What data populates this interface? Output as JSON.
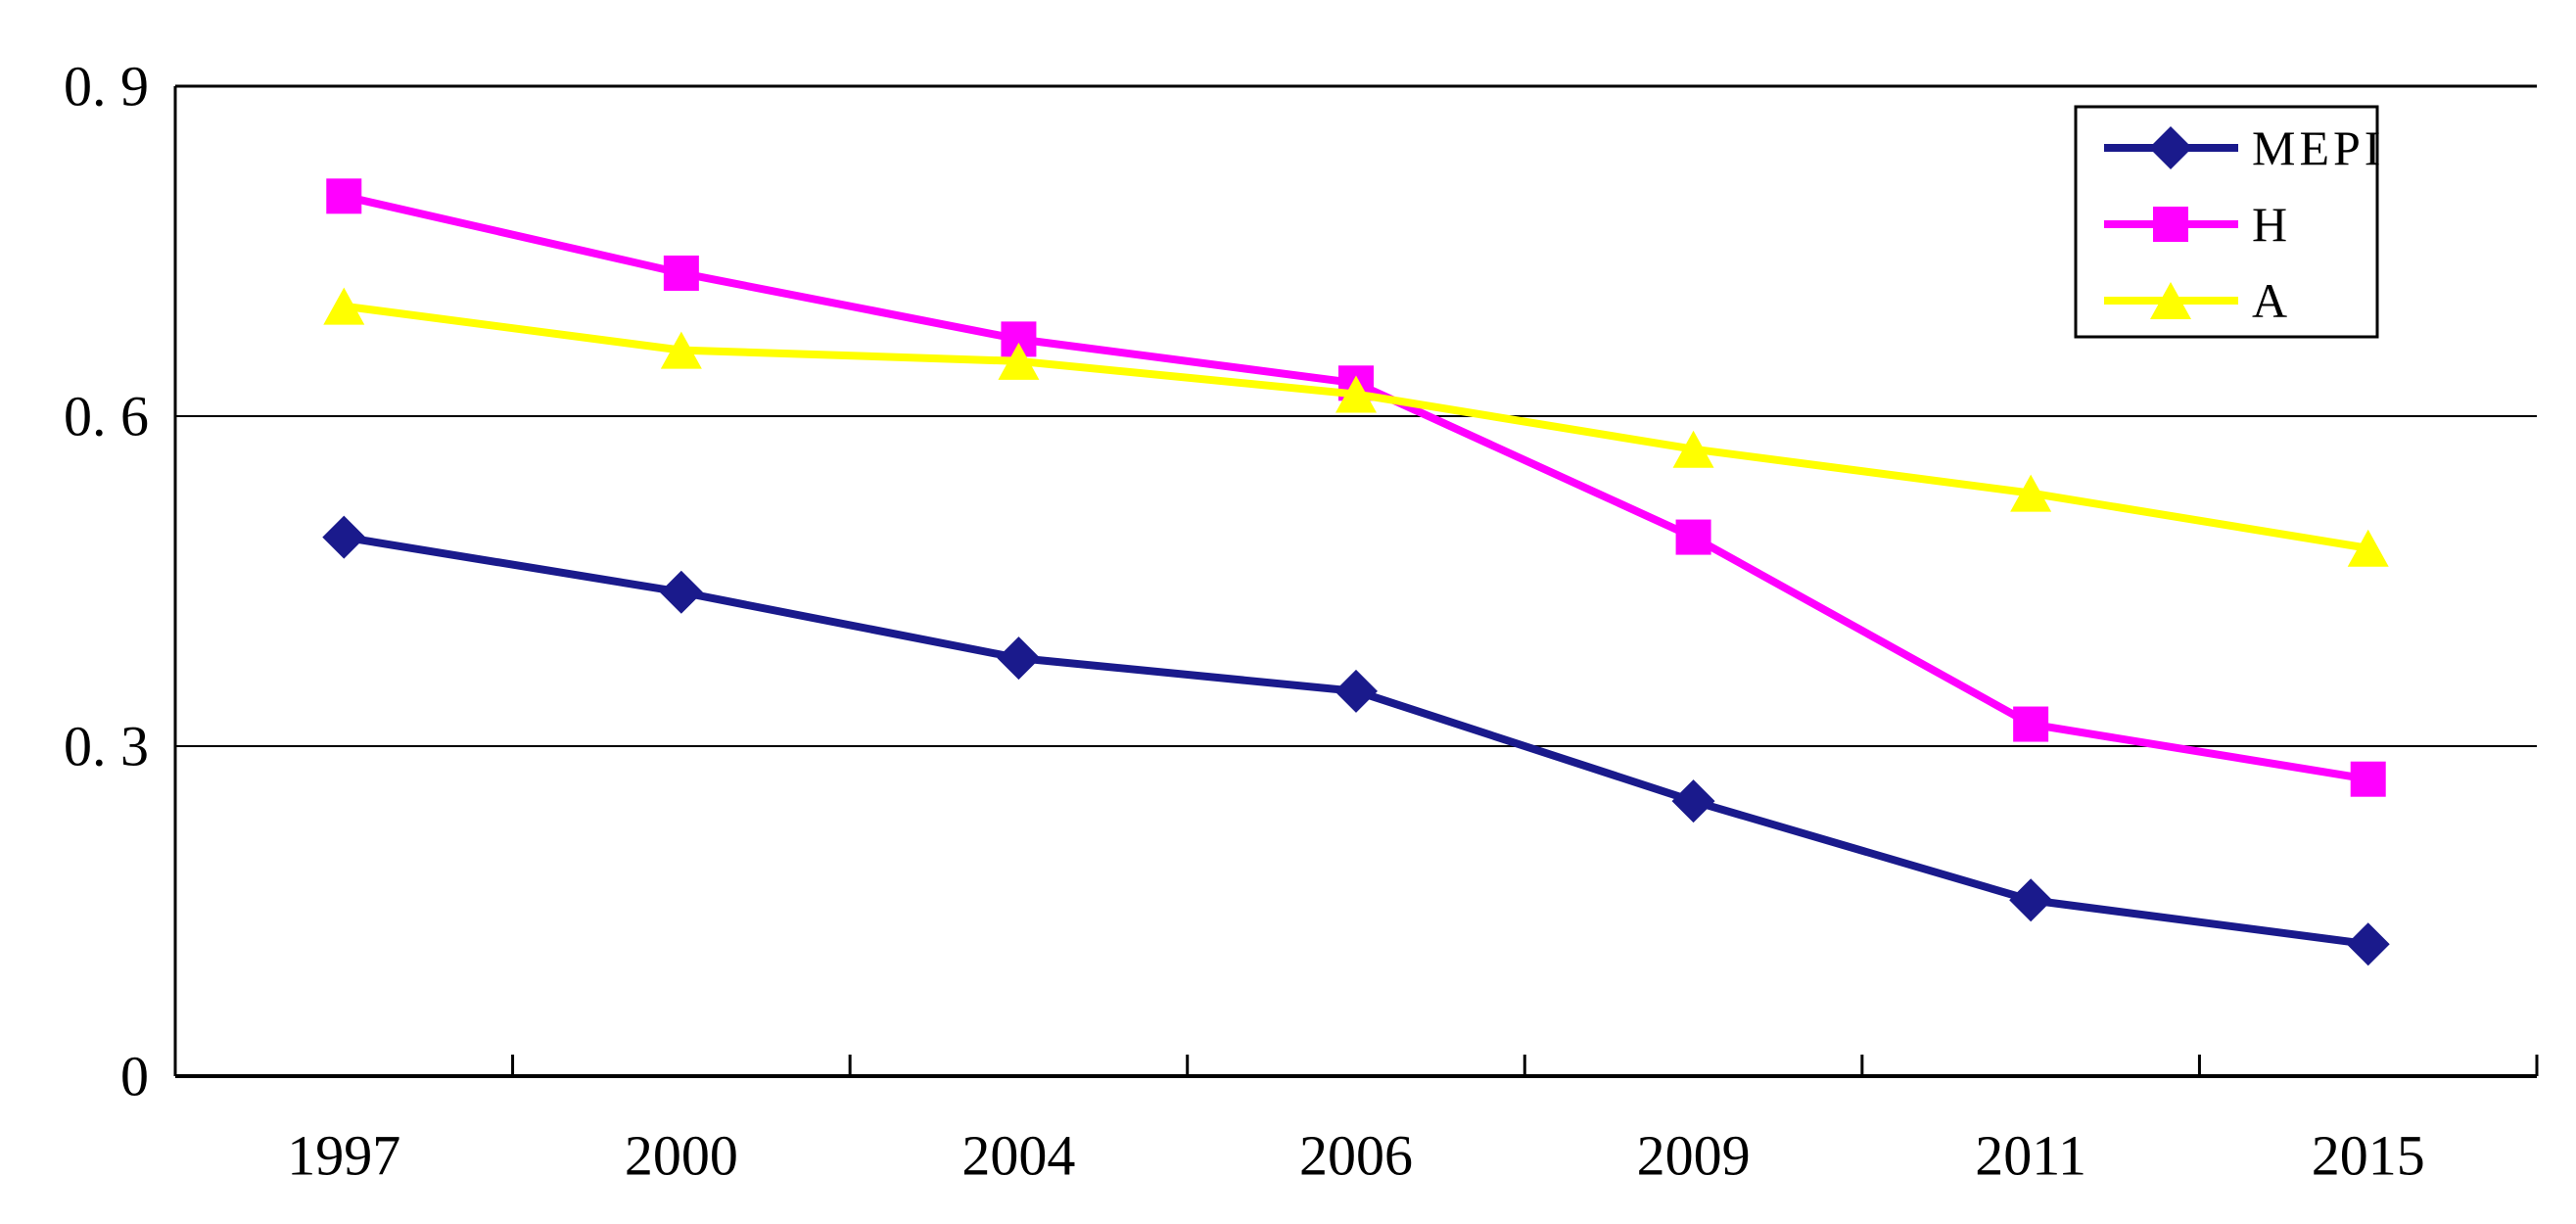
{
  "chart": {
    "background": "#ffffff",
    "axis_color": "#000000",
    "plot_border_color": "#000000",
    "gridline_color": "#000000"
  },
  "chart_data": {
    "type": "line",
    "title": "",
    "xlabel": "",
    "ylabel": "",
    "categories": [
      "1997",
      "2000",
      "2004",
      "2006",
      "2009",
      "2011",
      "2015"
    ],
    "series": [
      {
        "name": "MEPI",
        "color": "#1a1a8c",
        "marker": "diamond",
        "values": [
          0.49,
          0.44,
          0.38,
          0.35,
          0.25,
          0.16,
          0.12
        ]
      },
      {
        "name": "H",
        "color": "#ff00ff",
        "marker": "square",
        "values": [
          0.8,
          0.73,
          0.67,
          0.63,
          0.49,
          0.32,
          0.27
        ]
      },
      {
        "name": "A",
        "color": "#ffff00",
        "marker": "triangle",
        "values": [
          0.7,
          0.66,
          0.65,
          0.62,
          0.57,
          0.53,
          0.48
        ]
      }
    ],
    "ylim": [
      0,
      0.9
    ],
    "y_ticks": [
      0,
      0.3,
      0.6,
      0.9
    ],
    "y_tick_labels": [
      "0",
      "0. 3",
      "0. 6",
      "0. 9"
    ],
    "inner_gridlines": [
      0.3,
      0.6
    ],
    "grid_on": true,
    "legend_position": "top-right",
    "legend_entries": [
      "MEPI",
      "H",
      "A"
    ]
  }
}
